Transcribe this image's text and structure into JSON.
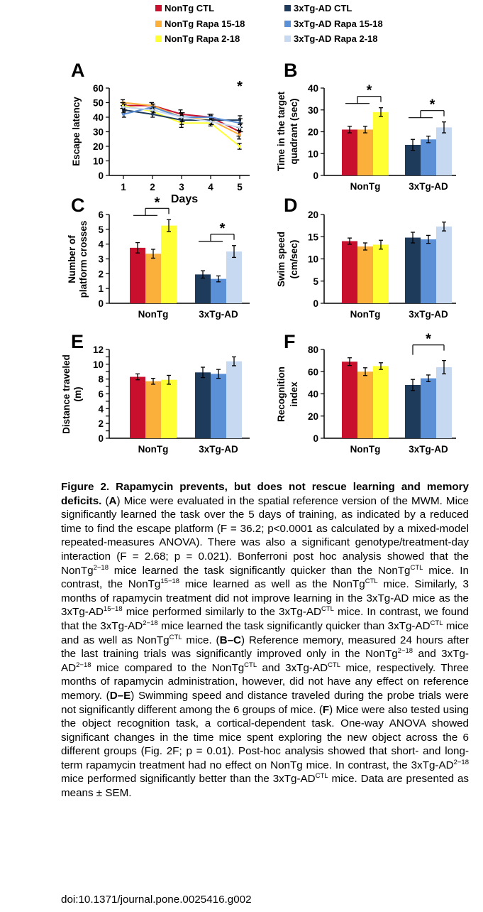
{
  "colors": {
    "NonTg CTL": "#c8102e",
    "NonTg Rapa 15-18": "#fbb03b",
    "NonTg Rapa 2-18": "#ffff33",
    "3xTg-AD CTL": "#1f3b5c",
    "3xTg-AD Rapa 15-18": "#5b8fd6",
    "3xTg-AD Rapa 2-18": "#c6d9f1"
  },
  "legend": [
    {
      "label": "NonTg CTL",
      "color": "#c8102e"
    },
    {
      "label": "NonTg Rapa 15-18",
      "color": "#fbb03b"
    },
    {
      "label": "NonTg Rapa 2-18",
      "color": "#ffff33"
    },
    {
      "label": "3xTg-AD CTL",
      "color": "#1f3b5c"
    },
    {
      "label": "3xTg-AD Rapa 15-18",
      "color": "#5b8fd6"
    },
    {
      "label": "3xTg-AD Rapa 2-18",
      "color": "#c6d9f1"
    }
  ],
  "chart_data": [
    {
      "panel": "A",
      "type": "line",
      "xlabel": "Days",
      "ylabel": "Escape latency",
      "x": [
        1,
        2,
        3,
        4,
        5
      ],
      "ylim": [
        0,
        60
      ],
      "yticks": [
        0,
        10,
        20,
        30,
        40,
        50,
        60
      ],
      "annotations": [
        {
          "x": 5,
          "text": "*"
        }
      ],
      "series": [
        {
          "name": "NonTg CTL",
          "values": [
            48,
            48,
            42,
            40,
            30
          ],
          "errors": [
            2,
            2,
            3,
            2,
            3
          ]
        },
        {
          "name": "NonTg Rapa 15-18",
          "values": [
            50,
            48,
            40,
            38,
            28
          ],
          "errors": [
            2,
            2,
            3,
            2,
            3
          ]
        },
        {
          "name": "NonTg Rapa 2-18",
          "values": [
            48,
            44,
            36,
            36,
            20
          ],
          "errors": [
            2,
            2,
            3,
            2,
            2
          ]
        },
        {
          "name": "3xTg-AD CTL",
          "values": [
            45,
            42,
            38,
            38,
            38
          ],
          "errors": [
            2,
            2,
            3,
            3,
            3
          ]
        },
        {
          "name": "3xTg-AD Rapa 15-18",
          "values": [
            42,
            47,
            40,
            40,
            36
          ],
          "errors": [
            2,
            2,
            3,
            2,
            3
          ]
        },
        {
          "name": "3xTg-AD Rapa 2-18",
          "values": [
            47,
            45,
            40,
            37,
            33
          ],
          "errors": [
            2,
            2,
            3,
            2,
            3
          ]
        }
      ]
    },
    {
      "panel": "B",
      "type": "bar",
      "ylabel": [
        "Time in the target",
        "quadrant (sec)"
      ],
      "categories": [
        "NonTg",
        "3xTg-AD"
      ],
      "ylim": [
        0,
        40
      ],
      "yticks": [
        0,
        10,
        20,
        30,
        40
      ],
      "series": [
        {
          "name": "NonTg CTL",
          "group": 0,
          "value": 21,
          "error": 1.5
        },
        {
          "name": "NonTg Rapa 15-18",
          "group": 0,
          "value": 21,
          "error": 1.5
        },
        {
          "name": "NonTg Rapa 2-18",
          "group": 0,
          "value": 29,
          "error": 2
        },
        {
          "name": "3xTg-AD CTL",
          "group": 1,
          "value": 14,
          "error": 2.5
        },
        {
          "name": "3xTg-AD Rapa 15-18",
          "group": 1,
          "value": 16.5,
          "error": 1.5
        },
        {
          "name": "3xTg-AD Rapa 2-18",
          "group": 1,
          "value": 22,
          "error": 2.5
        }
      ],
      "annotations": [
        {
          "from": "NonTg CTL+NonTg Rapa 15-18",
          "to": "NonTg Rapa 2-18",
          "text": "*"
        },
        {
          "from": "3xTg-AD CTL+3xTg-AD Rapa 15-18",
          "to": "3xTg-AD Rapa 2-18",
          "text": "*"
        }
      ]
    },
    {
      "panel": "C",
      "type": "bar",
      "ylabel": [
        "Number of",
        "platform crosses"
      ],
      "categories": [
        "NonTg",
        "3xTg-AD"
      ],
      "ylim": [
        0,
        6
      ],
      "yticks": [
        0,
        1,
        2,
        3,
        4,
        5,
        6
      ],
      "series": [
        {
          "name": "NonTg CTL",
          "group": 0,
          "value": 3.75,
          "error": 0.35
        },
        {
          "name": "NonTg Rapa 15-18",
          "group": 0,
          "value": 3.35,
          "error": 0.3
        },
        {
          "name": "NonTg Rapa 2-18",
          "group": 0,
          "value": 5.25,
          "error": 0.4
        },
        {
          "name": "3xTg-AD CTL",
          "group": 1,
          "value": 1.95,
          "error": 0.25
        },
        {
          "name": "3xTg-AD Rapa 15-18",
          "group": 1,
          "value": 1.65,
          "error": 0.2
        },
        {
          "name": "3xTg-AD Rapa 2-18",
          "group": 1,
          "value": 3.5,
          "error": 0.4
        }
      ],
      "annotations": [
        {
          "from": "NonTg CTL+NonTg Rapa 15-18",
          "to": "NonTg Rapa 2-18",
          "text": "*"
        },
        {
          "from": "3xTg-AD CTL+3xTg-AD Rapa 15-18",
          "to": "3xTg-AD Rapa 2-18",
          "text": "*"
        }
      ]
    },
    {
      "panel": "D",
      "type": "bar",
      "ylabel": [
        "Swim speed",
        "(cm/sec)"
      ],
      "categories": [
        "NonTg",
        "3xTg-AD"
      ],
      "ylim": [
        0,
        20
      ],
      "yticks": [
        0,
        5,
        10,
        15,
        20
      ],
      "series": [
        {
          "name": "NonTg CTL",
          "group": 0,
          "value": 14,
          "error": 0.7
        },
        {
          "name": "NonTg Rapa 15-18",
          "group": 0,
          "value": 12.8,
          "error": 0.8
        },
        {
          "name": "NonTg Rapa 2-18",
          "group": 0,
          "value": 13.2,
          "error": 1
        },
        {
          "name": "3xTg-AD CTL",
          "group": 1,
          "value": 14.8,
          "error": 1.2
        },
        {
          "name": "3xTg-AD Rapa 15-18",
          "group": 1,
          "value": 14.4,
          "error": 0.9
        },
        {
          "name": "3xTg-AD Rapa 2-18",
          "group": 1,
          "value": 17.3,
          "error": 1
        }
      ],
      "annotations": []
    },
    {
      "panel": "E",
      "type": "bar",
      "ylabel": [
        "Distance traveled",
        "(m)"
      ],
      "categories": [
        "NonTg",
        "3xTg-AD"
      ],
      "ylim": [
        0,
        12
      ],
      "yticks": [
        0,
        1,
        2,
        3,
        4,
        5,
        6,
        7,
        8,
        9,
        10,
        11,
        12
      ],
      "yticklabels": [
        0,
        2,
        4,
        6,
        8,
        10,
        12
      ],
      "series": [
        {
          "name": "NonTg CTL",
          "group": 0,
          "value": 8.3,
          "error": 0.4
        },
        {
          "name": "NonTg Rapa 15-18",
          "group": 0,
          "value": 7.7,
          "error": 0.4
        },
        {
          "name": "NonTg Rapa 2-18",
          "group": 0,
          "value": 7.9,
          "error": 0.6
        },
        {
          "name": "3xTg-AD CTL",
          "group": 1,
          "value": 8.9,
          "error": 0.7
        },
        {
          "name": "3xTg-AD Rapa 15-18",
          "group": 1,
          "value": 8.7,
          "error": 0.6
        },
        {
          "name": "3xTg-AD Rapa 2-18",
          "group": 1,
          "value": 10.4,
          "error": 0.6
        }
      ],
      "annotations": []
    },
    {
      "panel": "F",
      "type": "bar",
      "ylabel": [
        "Recognition",
        "index"
      ],
      "categories": [
        "NonTg",
        "3xTg-AD"
      ],
      "ylim": [
        0,
        80
      ],
      "yticks": [
        0,
        20,
        40,
        60,
        80
      ],
      "series": [
        {
          "name": "NonTg CTL",
          "group": 0,
          "value": 69,
          "error": 3.5
        },
        {
          "name": "NonTg Rapa 15-18",
          "group": 0,
          "value": 60,
          "error": 3.5
        },
        {
          "name": "NonTg Rapa 2-18",
          "group": 0,
          "value": 65,
          "error": 3
        },
        {
          "name": "3xTg-AD CTL",
          "group": 1,
          "value": 48,
          "error": 5
        },
        {
          "name": "3xTg-AD Rapa 15-18",
          "group": 1,
          "value": 54,
          "error": 3
        },
        {
          "name": "3xTg-AD Rapa 2-18",
          "group": 1,
          "value": 64,
          "error": 6
        }
      ],
      "annotations": [
        {
          "from": "3xTg-AD CTL",
          "to": "3xTg-AD Rapa 2-18",
          "text": "*"
        }
      ]
    }
  ],
  "caption": {
    "title": "Figure 2. Rapamycin prevents, but does not rescue learning and memory deficits.",
    "text_html": "(<b>A</b>) Mice were evaluated in the spatial reference version of the MWM. Mice significantly learned the task over the 5 days of training, as indicated by a reduced time to find the escape platform (F = 36.2; p&lt;0.0001 as calculated by a mixed-model repeated-measures ANOVA). There was also a significant genotype/treatment-day interaction (F = 2.68; p = 0.021). Bonferroni post hoc analysis showed that the NonTg<sup>2−18</sup> mice learned the task significantly quicker than the NonTg<sup>CTL</sup> mice. In contrast, the NonTg<sup>15−18</sup> mice learned as well as the NonTg<sup>CTL</sup> mice. Similarly, 3 months of rapamycin treatment did not improve learning in the 3xTg-AD mice as the 3xTg-AD<sup>15−18</sup> mice performed similarly to the 3xTg-AD<sup>CTL</sup> mice. In contrast, we found that the 3xTg-AD<sup>2−18</sup> mice learned the task significantly quicker than 3xTg-AD<sup>CTL</sup> mice and as well as NonTg<sup>CTL</sup> mice. (<b>B–C</b>) Reference memory, measured 24 hours after the last training trials was significantly improved only in the NonTg<sup>2−18</sup> and 3xTg-AD<sup>2−18</sup> mice compared to the NonTg<sup>CTL</sup> and 3xTg-AD<sup>CTL</sup> mice, respectively. Three months of rapamycin administration, however, did not have any effect on reference memory. (<b>D–E</b>) Swimming speed and distance traveled during the probe trials were not significantly different among the 6 groups of mice. (<b>F</b>) Mice were also tested using the object recognition task, a cortical-dependent task. One-way ANOVA showed significant changes in the time mice spent exploring the new object across the 6 different groups (Fig. 2F; p = 0.01). Post-hoc analysis showed that short- and long-term rapamycin treatment had no effect on NonTg mice. In contrast, the 3xTg-AD<sup>2−18</sup> mice performed significantly better than the 3xTg-AD<sup>CTL</sup> mice. Data are presented as means ± SEM."
  },
  "doi": "doi:10.1371/journal.pone.0025416.g002"
}
